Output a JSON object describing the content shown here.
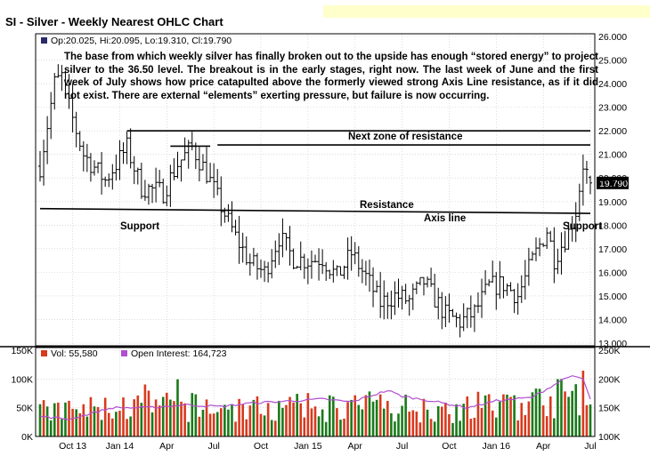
{
  "title": "SI - Silver - Weekly Nearest OHLC Chart",
  "price_legend": "Op:20.025, Hi:20.095, Lo:19.310, Cl:19.790",
  "last_price_label": "19.790",
  "volume_legend": "Vol: 55,580",
  "oi_legend": "Open Interest: 164,723",
  "annotation_text": "The base from which weekly silver has finally broken out to the upside has enough “stored energy” to project silver to the 36.50 level.  The breakout is in the early stages, right now. The last week of June and the first week of July shows how price catapulted above the formerly viewed strong Axis Line resistance, as if it did not exist.  There are external “elements” exerting pressure, but failure is now occurring.",
  "labels": {
    "next_zone": "Next zone of resistance",
    "resistance": "Resistance",
    "axis_line": "Axis line",
    "support_left": "Support",
    "support_right": "Support"
  },
  "colors": {
    "up_volume": "#1a7a1a",
    "down_volume": "#d83a1e",
    "open_interest": "#b04fd0",
    "price_bar": "#000000",
    "grid": "#c8c8c8",
    "promo": "#ffffcc"
  },
  "chart_data": {
    "type": "ohlc",
    "title": "SI - Silver - Weekly Nearest OHLC Chart",
    "price_axis": {
      "min": 13.0,
      "max": 26.0,
      "ticks": [
        "13.000",
        "14.000",
        "15.000",
        "16.000",
        "17.000",
        "18.000",
        "19.000",
        "20.000",
        "21.000",
        "22.000",
        "23.000",
        "24.000",
        "25.000",
        "26.000"
      ]
    },
    "volume_axis": {
      "min": 0,
      "max": 150000,
      "ticks": [
        "0K",
        "50K",
        "100K",
        "150K"
      ]
    },
    "oi_axis": {
      "min": 100000,
      "max": 250000,
      "ticks": [
        "100K",
        "150K",
        "200K",
        "250K"
      ]
    },
    "x_labels": [
      "Oct 13",
      "Jan 14",
      "Apr",
      "Jul",
      "Oct",
      "Jan 15",
      "Apr",
      "Jul",
      "Oct",
      "Jan 16",
      "Apr",
      "Jul"
    ],
    "price_anchors": [
      [
        0,
        20.5
      ],
      [
        4,
        24.0
      ],
      [
        6,
        24.3
      ],
      [
        8,
        23.0
      ],
      [
        12,
        21.0
      ],
      [
        18,
        19.9
      ],
      [
        24,
        21.3
      ],
      [
        28,
        19.6
      ],
      [
        34,
        19.4
      ],
      [
        38,
        20.6
      ],
      [
        42,
        21.3
      ],
      [
        46,
        20.2
      ],
      [
        50,
        18.8
      ],
      [
        54,
        17.5
      ],
      [
        58,
        16.4
      ],
      [
        62,
        16.0
      ],
      [
        66,
        17.5
      ],
      [
        70,
        16.6
      ],
      [
        74,
        16.5
      ],
      [
        78,
        16.6
      ],
      [
        82,
        15.8
      ],
      [
        86,
        16.8
      ],
      [
        90,
        15.8
      ],
      [
        94,
        14.7
      ],
      [
        98,
        15.0
      ],
      [
        102,
        14.8
      ],
      [
        106,
        15.6
      ],
      [
        108,
        15.1
      ],
      [
        112,
        14.2
      ],
      [
        116,
        13.9
      ],
      [
        120,
        14.3
      ],
      [
        124,
        15.4
      ],
      [
        128,
        15.5
      ],
      [
        132,
        15.0
      ],
      [
        136,
        16.5
      ],
      [
        140,
        17.8
      ],
      [
        142,
        16.6
      ],
      [
        146,
        17.7
      ],
      [
        148,
        18.6
      ],
      [
        150,
        20.6
      ],
      [
        152,
        19.8
      ]
    ],
    "volume_anchors": [
      [
        0,
        40
      ],
      [
        30,
        50
      ],
      [
        60,
        45
      ],
      [
        90,
        50
      ],
      [
        120,
        45
      ],
      [
        140,
        60
      ],
      [
        152,
        75
      ]
    ],
    "open_interest_anchors": [
      [
        0,
        135
      ],
      [
        8,
        130
      ],
      [
        20,
        150
      ],
      [
        30,
        150
      ],
      [
        40,
        155
      ],
      [
        50,
        152
      ],
      [
        58,
        158
      ],
      [
        70,
        162
      ],
      [
        78,
        165
      ],
      [
        86,
        160
      ],
      [
        96,
        180
      ],
      [
        100,
        170
      ],
      [
        108,
        162
      ],
      [
        118,
        150
      ],
      [
        126,
        162
      ],
      [
        136,
        168
      ],
      [
        142,
        190
      ],
      [
        146,
        205
      ],
      [
        150,
        200
      ],
      [
        152,
        165
      ]
    ],
    "last": {
      "open": 20.025,
      "high": 20.095,
      "low": 19.31,
      "close": 19.79,
      "volume": 55580,
      "open_interest": 164723
    },
    "trendlines": [
      {
        "name": "next-zone-of-resistance",
        "points": [
          [
            24,
            22.0
          ],
          [
            152,
            22.0
          ]
        ]
      },
      {
        "name": "resistance-upper",
        "points": [
          [
            49,
            21.4
          ],
          [
            152,
            21.4
          ]
        ]
      },
      {
        "name": "resistance-small-segment",
        "points": [
          [
            36,
            21.35
          ],
          [
            47,
            21.35
          ]
        ]
      },
      {
        "name": "axis-line",
        "points": [
          [
            0,
            18.7
          ],
          [
            152,
            18.5
          ]
        ]
      }
    ]
  }
}
